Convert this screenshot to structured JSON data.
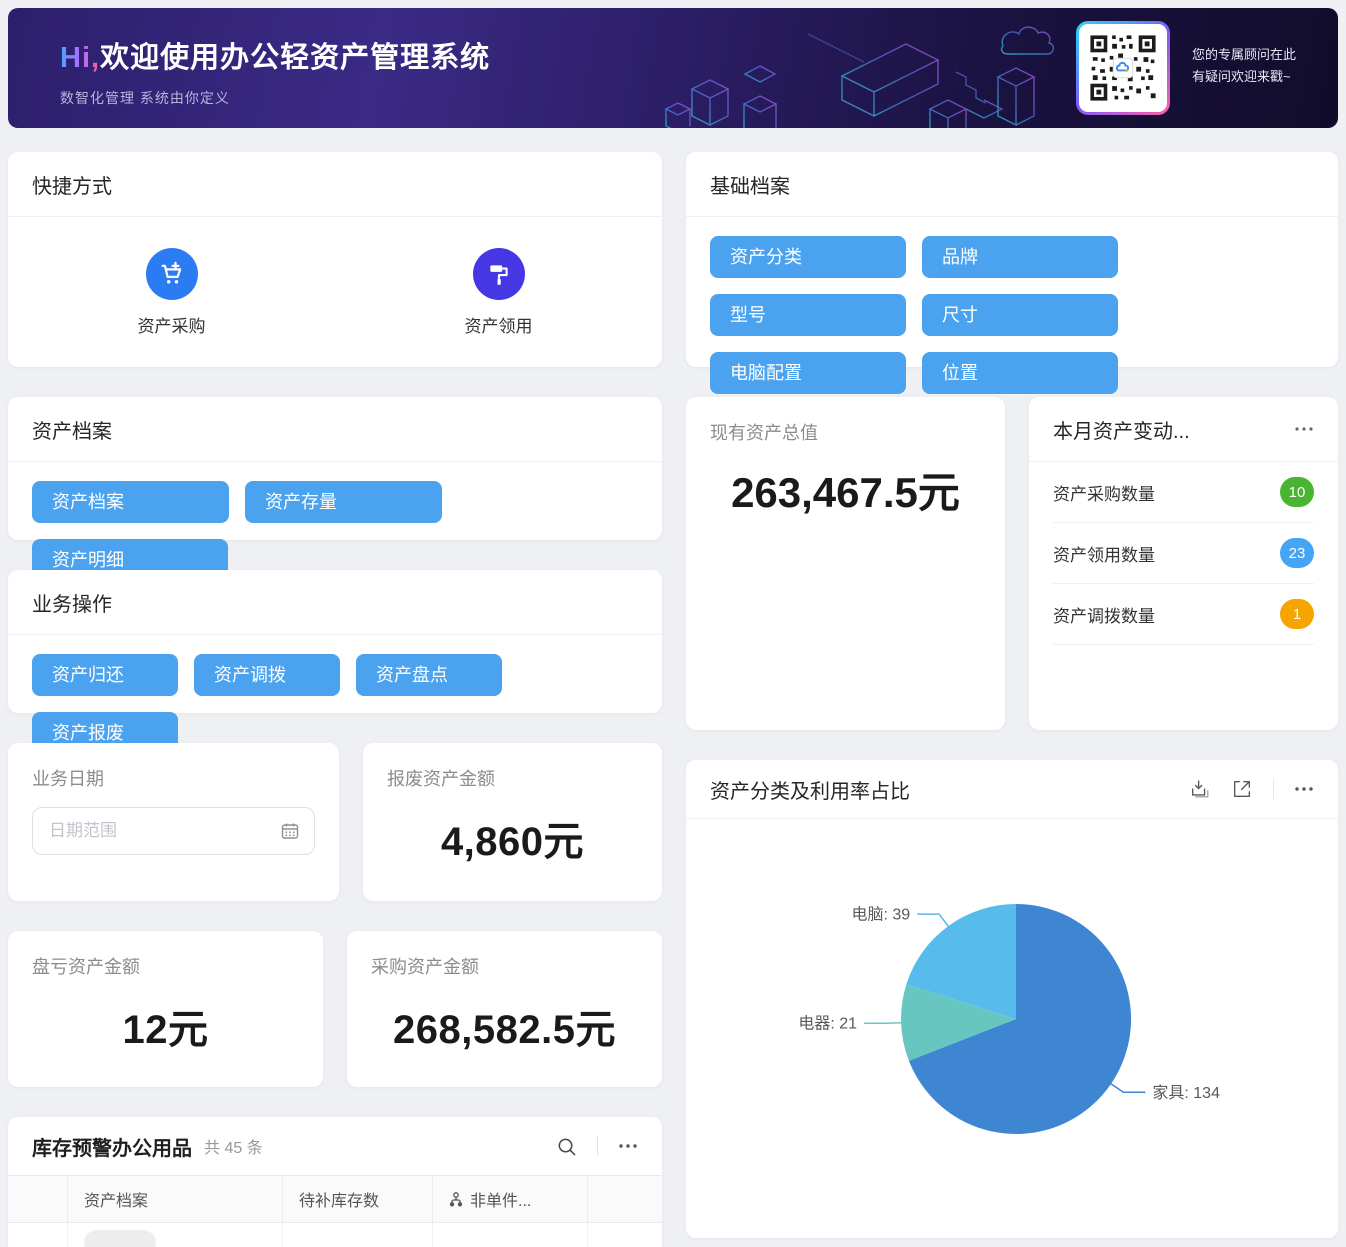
{
  "banner": {
    "greeting": "Hi,",
    "title": "欢迎使用办公轻资产管理系统",
    "subtitle": "数智化管理 系统由你定义",
    "qr_line1": "您的专属顾问在此",
    "qr_line2": "有疑问欢迎来戳~"
  },
  "shortcuts": {
    "title": "快捷方式",
    "items": [
      {
        "label": "资产采购",
        "icon": "cart-plus-icon",
        "color": "#2b7bf3"
      },
      {
        "label": "资产领用",
        "icon": "paint-roller-icon",
        "color": "#4637e4"
      }
    ]
  },
  "base_archives": {
    "title": "基础档案",
    "buttons": [
      "资产分类",
      "品牌",
      "型号",
      "尺寸",
      "电脑配置",
      "位置"
    ]
  },
  "asset_archives": {
    "title": "资产档案",
    "buttons": [
      "资产档案",
      "资产存量",
      "资产明细"
    ]
  },
  "business_ops": {
    "title": "业务操作",
    "buttons": [
      "资产归还",
      "资产调拨",
      "资产盘点",
      "资产报废"
    ]
  },
  "total_assets": {
    "label": "现有资产总值",
    "value": "263,467.5元"
  },
  "monthly_changes": {
    "title": "本月资产变动...",
    "rows": [
      {
        "label": "资产采购数量",
        "value": "10",
        "color": "#49b332"
      },
      {
        "label": "资产领用数量",
        "value": "23",
        "color": "#45a5f5"
      },
      {
        "label": "资产调拨数量",
        "value": "1",
        "color": "#f7a400"
      }
    ]
  },
  "business_date": {
    "label": "业务日期",
    "placeholder": "日期范围"
  },
  "scrap_amount": {
    "label": "报废资产金额",
    "value": "4,860元"
  },
  "loss_amount": {
    "label": "盘亏资产金额",
    "value": "12元"
  },
  "purchase_amount": {
    "label": "采购资产金额",
    "value": "268,582.5元"
  },
  "inventory_warning": {
    "title": "库存预警办公用品",
    "count_text": "共 45 条",
    "columns": [
      "",
      "资产档案",
      "待补库存数",
      "非单件..."
    ]
  },
  "chart_data": {
    "type": "pie",
    "title": "资产分类及利用率占比",
    "categories": [
      "家具",
      "电器",
      "电脑"
    ],
    "values": [
      134,
      21,
      39
    ],
    "colors": [
      "#3f86d2",
      "#68c6c0",
      "#57bbec"
    ],
    "labels": [
      "家具: 134",
      "电器: 21",
      "电脑: 39"
    ],
    "start_angle_deg": 0,
    "direction": "clockwise-from-top",
    "legend_position": "none"
  },
  "colors": {
    "accent_blue": "#4ba3ef"
  }
}
